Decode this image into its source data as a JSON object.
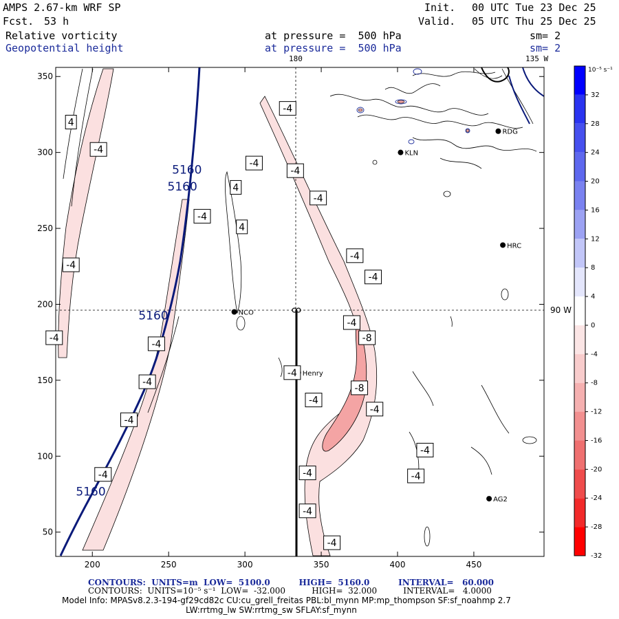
{
  "header": {
    "model": "AMPS 2.67-km WRF SP",
    "forecast_label": "Fcst.",
    "forecast_value": "53 h",
    "init_label": "Init.",
    "init_value": "00 UTC Tue 23 Dec 25",
    "valid_label": "Valid.",
    "valid_value": "05 UTC Thu 25 Dec 25",
    "field1_name": "Relative vorticity",
    "field1_level": "at pressure =  500 hPa",
    "field1_sm": "sm= 2",
    "field2_name": "Geopotential height",
    "field2_level": "at pressure =  500 hPa",
    "field2_sm": "sm= 2"
  },
  "map": {
    "top_lon_label_180": "180",
    "top_lon_label_135": "135 W",
    "right_lat_label": "90 W",
    "x_ticks": [
      "200",
      "250",
      "300",
      "350",
      "400",
      "450"
    ],
    "y_ticks": [
      "350",
      "300",
      "250",
      "200",
      "150",
      "100",
      "50"
    ],
    "x_range": [
      176,
      496
    ],
    "y_range": [
      34,
      356
    ],
    "stations": [
      {
        "name": "NCO",
        "x": 293,
        "y": 195
      },
      {
        "name": "Henry",
        "x": 335,
        "y": 155
      },
      {
        "name": "KLN",
        "x": 402,
        "y": 300
      },
      {
        "name": "RDG",
        "x": 466,
        "y": 314
      },
      {
        "name": "HRC",
        "x": 469,
        "y": 239
      },
      {
        "name": "AG2",
        "x": 460,
        "y": 72
      }
    ],
    "height_labels": [
      {
        "text": "5160",
        "x": 262,
        "y": 286
      },
      {
        "text": "5160",
        "x": 259,
        "y": 275
      },
      {
        "text": "5160",
        "x": 240,
        "y": 190
      },
      {
        "text": "5160",
        "x": 199,
        "y": 74
      }
    ],
    "vorticity_labels": [
      {
        "text": "4",
        "x": 186,
        "y": 320
      },
      {
        "text": "-4",
        "x": 204,
        "y": 302
      },
      {
        "text": "-4",
        "x": 272,
        "y": 258
      },
      {
        "text": "4",
        "x": 294,
        "y": 277
      },
      {
        "text": "4",
        "x": 298,
        "y": 251
      },
      {
        "text": "-4",
        "x": 186,
        "y": 226
      },
      {
        "text": "-4",
        "x": 306,
        "y": 293
      },
      {
        "text": "-4",
        "x": 328,
        "y": 329
      },
      {
        "text": "-4",
        "x": 333,
        "y": 288
      },
      {
        "text": "-4",
        "x": 348,
        "y": 270
      },
      {
        "text": "-4",
        "x": 372,
        "y": 232
      },
      {
        "text": "-4",
        "x": 384,
        "y": 218
      },
      {
        "text": "-4",
        "x": 370,
        "y": 188
      },
      {
        "text": "-8",
        "x": 380,
        "y": 178
      },
      {
        "text": "-4",
        "x": 175,
        "y": 178
      },
      {
        "text": "-4",
        "x": 242,
        "y": 174
      },
      {
        "text": "-4",
        "x": 236,
        "y": 149
      },
      {
        "text": "-4",
        "x": 224,
        "y": 124
      },
      {
        "text": "-4",
        "x": 331,
        "y": 155
      },
      {
        "text": "-4",
        "x": 345,
        "y": 137
      },
      {
        "text": "-8",
        "x": 375,
        "y": 145
      },
      {
        "text": "-4",
        "x": 385,
        "y": 131
      },
      {
        "text": "-4",
        "x": 418,
        "y": 104
      },
      {
        "text": "-4",
        "x": 412,
        "y": 87
      },
      {
        "text": "-4",
        "x": 341,
        "y": 89
      },
      {
        "text": "-4",
        "x": 341,
        "y": 64
      },
      {
        "text": "-4",
        "x": 357,
        "y": 43
      },
      {
        "text": "-4",
        "x": 207,
        "y": 88
      }
    ]
  },
  "colorbar": {
    "unit_label": "10⁻⁵ s⁻¹",
    "labels": [
      "32",
      "28",
      "24",
      "20",
      "16",
      "12",
      "8",
      "4",
      "0",
      "-4",
      "-8",
      "-12",
      "-16",
      "-20",
      "-24",
      "-28",
      "-32"
    ],
    "colors": [
      "#0000ff",
      "#2a34f0",
      "#4650ee",
      "#5e68ee",
      "#7a82f0",
      "#9ca2f3",
      "#c2c6f8",
      "#e4e6fc",
      "#ffffff",
      "#fbe5e5",
      "#f8cccc",
      "#f5b0b0",
      "#f29090",
      "#ef7070",
      "#ef4c4c",
      "#f22a2a",
      "#ff0000"
    ]
  },
  "footer": {
    "line1": "CONTOURS:  UNITS=m  LOW=  5100.0          HIGH=  5160.0          INTERVAL=   60.000",
    "line2": "CONTOURS:  UNITS=10⁻⁵ s⁻¹  LOW=  -32.000          HIGH=  32.000          INTERVAL=   4.0000",
    "line3": "Model Info: MPASv8.2.3-194-gf29cd82c CU:cu_grell_freitas PBL:bl_mynn MP:mp_thompson SF:sf_noahmp 2.7",
    "line4": "LW:rrtmg_lw SW:rrtmg_sw SFLAY:sf_mynn"
  },
  "colors": {
    "height_contour": "#0a1a7a",
    "neg_fill_light": "#fbe0e0",
    "neg_fill_mid": "#f4a4a4",
    "pos_fill_light": "#e2e4fc"
  }
}
